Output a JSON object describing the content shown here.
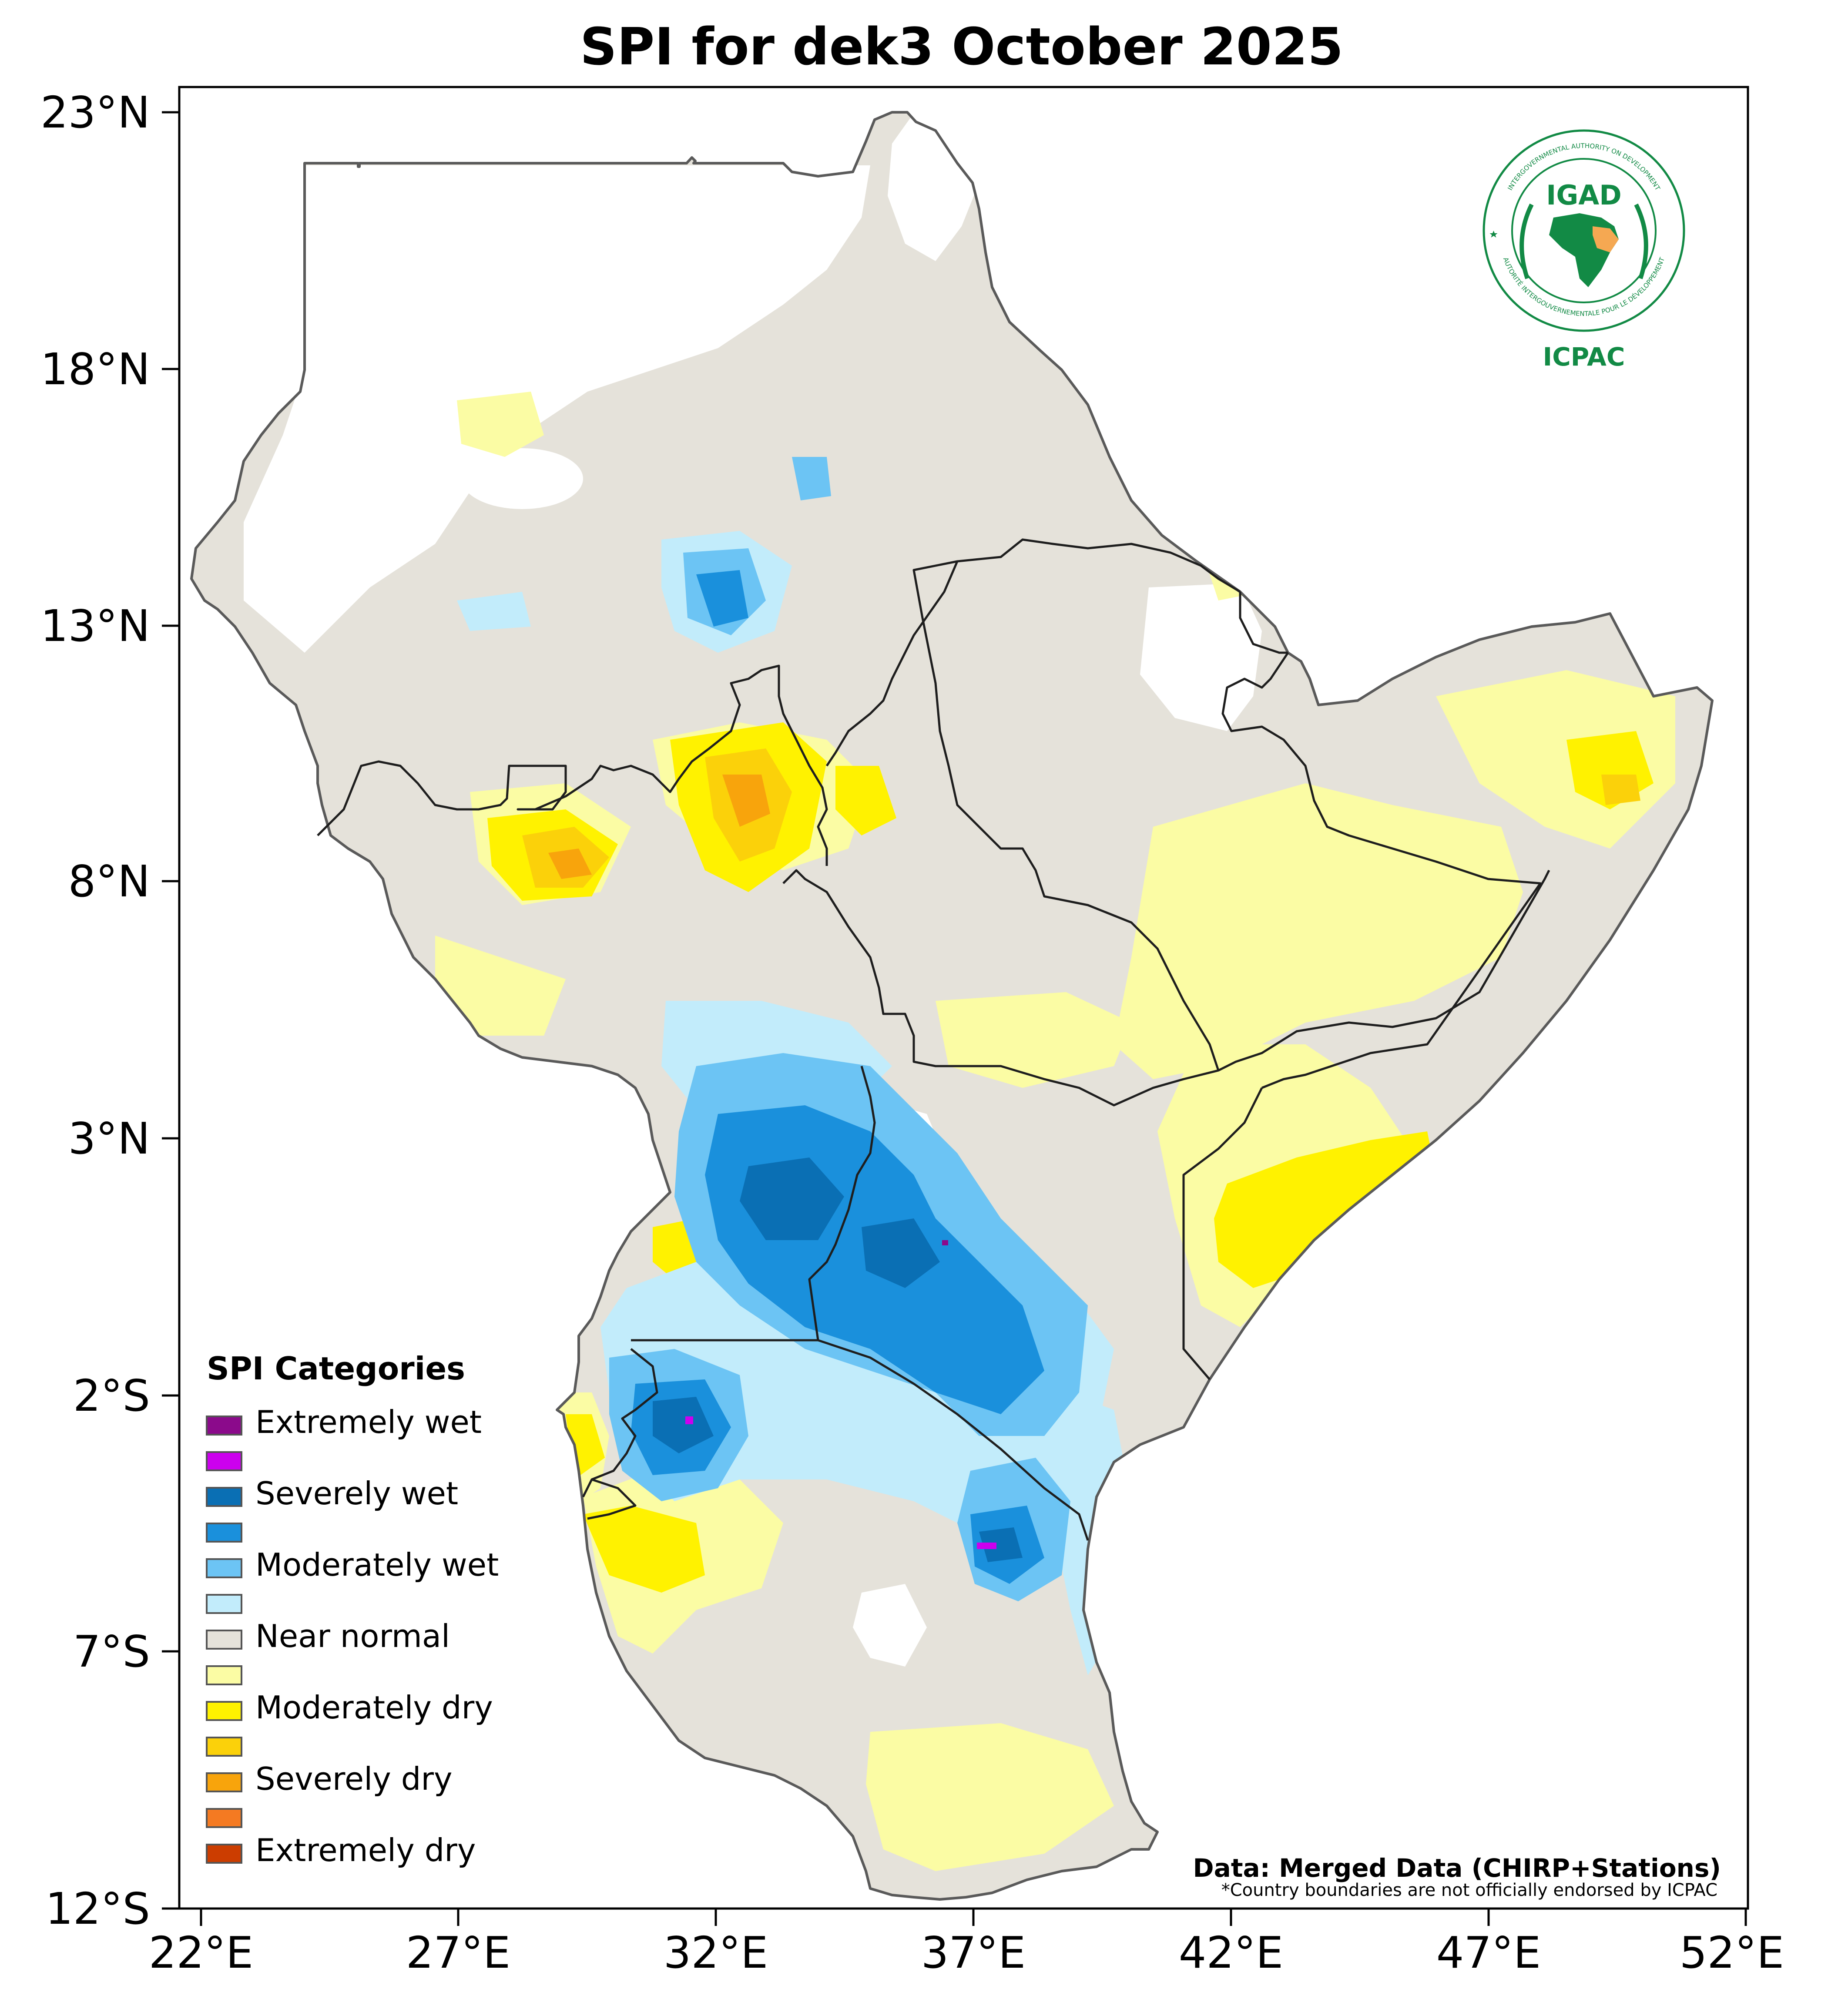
{
  "title": "SPI for dek3 October 2025",
  "axes": {
    "lat_ticks": [
      "23°N",
      "18°N",
      "13°N",
      "8°N",
      "3°N",
      "2°S",
      "7°S",
      "12°S"
    ],
    "lon_ticks": [
      "22°E",
      "27°E",
      "32°E",
      "37°E",
      "42°E",
      "47°E",
      "52°E"
    ]
  },
  "legend": {
    "title": "SPI Categories",
    "items": [
      {
        "label": "Extremely wet",
        "color": "#8b0a8b"
      },
      {
        "label": "",
        "color": "#cc00ee"
      },
      {
        "label": "Severely wet",
        "color": "#0a6fb4"
      },
      {
        "label": "",
        "color": "#1a90dc"
      },
      {
        "label": "Moderately wet",
        "color": "#6cc4f4"
      },
      {
        "label": "",
        "color": "#c2ecfb"
      },
      {
        "label": "Near normal",
        "color": "#e5e2da"
      },
      {
        "label": "",
        "color": "#fbfca4"
      },
      {
        "label": "Moderately dry",
        "color": "#fff200"
      },
      {
        "label": "",
        "color": "#fbd10a"
      },
      {
        "label": "Severely dry",
        "color": "#f8a40c"
      },
      {
        "label": "",
        "color": "#f47a22"
      },
      {
        "label": "Extremely dry",
        "color": "#cc3d00"
      }
    ]
  },
  "credits": {
    "source": "Data: Merged Data (CHIRP+Stations)",
    "disclaimer": "*Country boundaries are not officially endorsed by ICPAC"
  },
  "logo": {
    "top_text": "INTERGOVERNMENTAL AUTHORITY ON DEVELOPMENT",
    "bottom_text": "AUTORITÉ INTERGOUVERNEMENTALE POUR LE DÉVELOPPEMENT",
    "igad": "IGAD",
    "icpac": "ICPAC"
  },
  "colors": {
    "near_normal": "#e5e2da",
    "land_no_data": "#ffffff",
    "outline": "#5a5a5a",
    "border": "#1e1e1e",
    "logo_green": "#128a45",
    "logo_orange": "#f5a852"
  }
}
